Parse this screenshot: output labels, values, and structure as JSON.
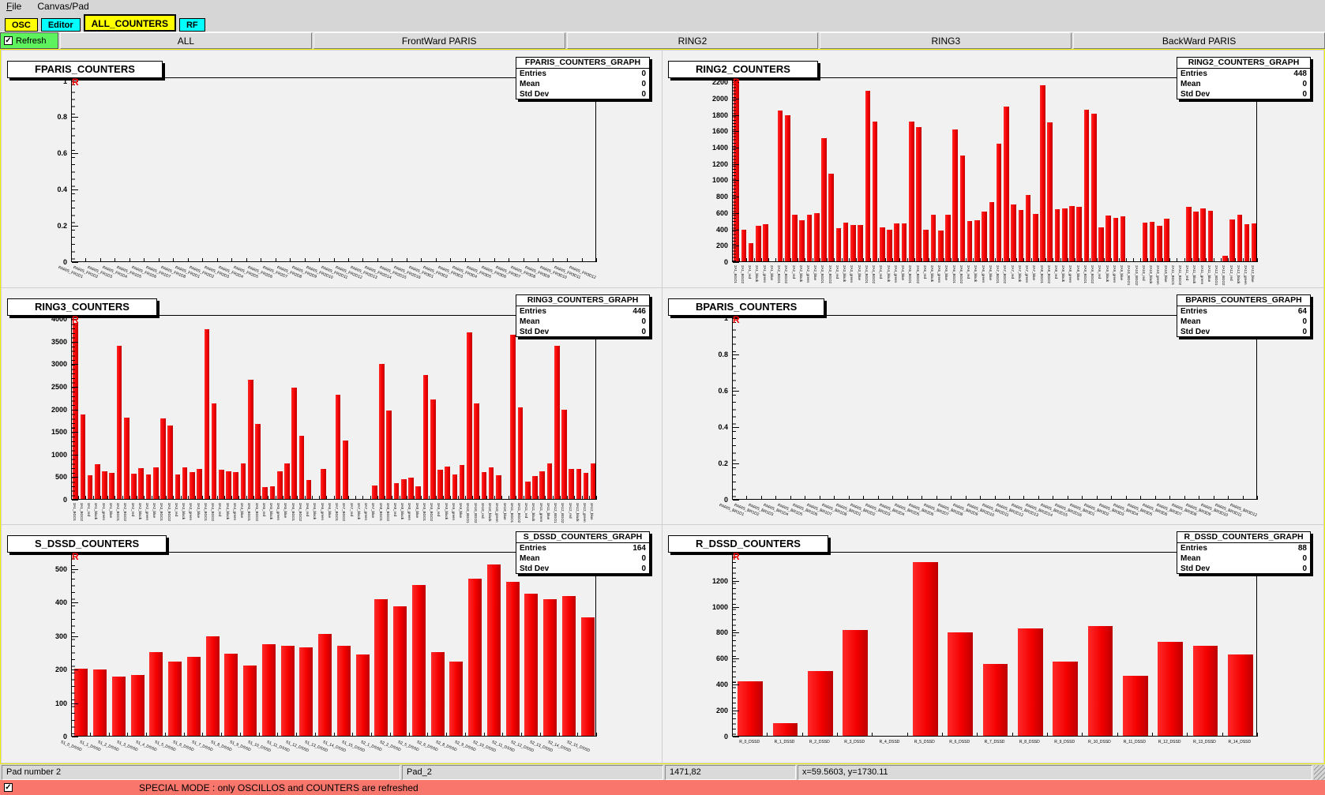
{
  "menu": {
    "items": [
      "File",
      "Canvas/Pad"
    ]
  },
  "tabs": [
    {
      "label": "OSC",
      "color": "#ffff00",
      "selected": false
    },
    {
      "label": "Editor",
      "color": "#00ffff",
      "selected": false
    },
    {
      "label": "ALL_COUNTERS",
      "color": "#ffff00",
      "selected": true
    },
    {
      "label": "RF",
      "color": "#00ffff",
      "selected": false
    }
  ],
  "toolbar": {
    "refresh_label": "Refresh",
    "refresh_checked": true,
    "buttons": [
      "ALL",
      "FrontWard PARIS",
      "RING2",
      "RING3",
      "BackWard PARIS"
    ]
  },
  "status_bar": {
    "segments": [
      "Pad number 2",
      "Pad_2",
      "1471,82",
      "x=59.5603, y=1730.11"
    ]
  },
  "special_bar": {
    "checked": true,
    "text": "SPECIAL MODE : only OSCILLOS and COUNTERS are refreshed",
    "color": "#f8766b"
  },
  "colors": {
    "bar": "#f40000",
    "tab_yellow": "#ffff00",
    "tab_cyan": "#00ffff",
    "refresh_green": "#5ef25e",
    "canvas_border": "#f0f000",
    "highlight_red": "#d04040",
    "pad_bg": "#f1f1f1"
  },
  "chart_data": [
    {
      "id": "fparis",
      "type": "bar",
      "title": "FPARIS_COUNTERS",
      "stats": {
        "title": "FPARIS_COUNTERS_GRAPH",
        "rows": [
          [
            "Entries",
            "0"
          ],
          [
            "Mean",
            "0"
          ],
          [
            "Std Dev",
            "0"
          ]
        ]
      },
      "marker": "R",
      "label_style": "diag",
      "ylim": 1.02,
      "ytick_vals": [
        0,
        0.2,
        0.4,
        0.6,
        0.8,
        1
      ],
      "ytick_labels": [
        "0",
        "0.2",
        "0.4",
        "0.6",
        "0.8",
        "1"
      ],
      "categories": [
        "PARIS_FR1D1",
        "PARIS_FR1D2",
        "PARIS_FR1D3",
        "PARIS_FR1D4",
        "PARIS_FR1D5",
        "PARIS_FR1D6",
        "PARIS_FR1D7",
        "PARIS_FR1D8",
        "PARIS_FR2D1",
        "PARIS_FR2D2",
        "PARIS_FR2D3",
        "PARIS_FR2D4",
        "PARIS_FR2D5",
        "PARIS_FR2D6",
        "PARIS_FR2D7",
        "PARIS_FR2D8",
        "PARIS_FR2D9",
        "PARIS_FR2D10",
        "PARIS_FR2D11",
        "PARIS_FR2D12",
        "PARIS_FR2D13",
        "PARIS_FR2D14",
        "PARIS_FR2D15",
        "PARIS_FR2D16",
        "PARIS_FR3D1",
        "PARIS_FR3D2",
        "PARIS_FR3D3",
        "PARIS_FR3D4",
        "PARIS_FR3D5",
        "PARIS_FR3D6",
        "PARIS_FR3D7",
        "PARIS_FR3D8",
        "PARIS_FR3D9",
        "PARIS_FR3D10",
        "PARIS_FR3D11",
        "PARIS_FR3D12"
      ],
      "values": [
        0,
        0,
        0,
        0,
        0,
        0,
        0,
        0,
        0,
        0,
        0,
        0,
        0,
        0,
        0,
        0,
        0,
        0,
        0,
        0,
        0,
        0,
        0,
        0,
        0,
        0,
        0,
        0,
        0,
        0,
        0,
        0,
        0,
        0,
        0,
        0
      ]
    },
    {
      "id": "ring2",
      "type": "bar",
      "title": "RING2_COUNTERS",
      "stats": {
        "title": "RING2_COUNTERS_GRAPH",
        "rows": [
          [
            "Entries",
            "448"
          ],
          [
            "Mean",
            "0"
          ],
          [
            "Std Dev",
            "0"
          ]
        ]
      },
      "marker": "R",
      "label_style": "vert",
      "ylim": 2260,
      "ytick_vals": [
        0,
        200,
        400,
        600,
        800,
        1000,
        1200,
        1400,
        1600,
        1800,
        2000,
        2200
      ],
      "ytick_labels": [
        "0",
        "200",
        "400",
        "600",
        "800",
        "1000",
        "1200",
        "1400",
        "1600",
        "1800",
        "2000",
        "2200"
      ],
      "categories": [
        "2A1_BGO1",
        "2A1_BGO2",
        "2A1_red",
        "2A1_black",
        "2A1_green",
        "2A1_blue",
        "2A2_BGO1",
        "2A2_BGO2",
        "2A2_red",
        "2A2_black",
        "2A2_green",
        "2A2_blue",
        "2A3_BGO1",
        "2A3_BGO2",
        "2A3_red",
        "2A3_black",
        "2A3_green",
        "2A3_blue",
        "2A4_BGO1",
        "2A4_BGO2",
        "2A4_red",
        "2A4_black",
        "2A4_green",
        "2A4_blue",
        "2A5_BGO1",
        "2A5_BGO2",
        "2A5_red",
        "2A5_black",
        "2A5_green",
        "2A5_blue",
        "2A6_BGO1",
        "2A6_BGO2",
        "2A6_red",
        "2A6_black",
        "2A6_green",
        "2A6_blue",
        "2A7_BGO1",
        "2A7_BGO2",
        "2A7_red",
        "2A7_black",
        "2A7_green",
        "2A7_blue",
        "2A8_BGO1",
        "2A8_BGO2",
        "2A8_red",
        "2A8_black",
        "2A8_green",
        "2A8_blue",
        "2A9_BGO1",
        "2A9_BGO2",
        "2A9_red",
        "2A9_black",
        "2A9_green",
        "2A9_blue",
        "2A10_BGO1",
        "2A10_BGO2",
        "2A10_red",
        "2A10_black",
        "2A10_green",
        "2A10_blue",
        "2A11_BGO1",
        "2A11_BGO2",
        "2A11_red",
        "2A11_black",
        "2A11_green",
        "2A11_blue",
        "2A12_BGO1",
        "2A12_BGO2",
        "2A12_red",
        "2A12_black",
        "2A12_green",
        "2A12_blue"
      ],
      "values": [
        2250,
        390,
        220,
        430,
        455,
        0,
        1845,
        1790,
        570,
        505,
        570,
        590,
        1505,
        1075,
        405,
        475,
        440,
        440,
        2085,
        1710,
        420,
        390,
        465,
        465,
        1710,
        1645,
        390,
        570,
        380,
        570,
        1610,
        1295,
        490,
        505,
        605,
        720,
        1440,
        1890,
        700,
        630,
        810,
        580,
        2155,
        1700,
        635,
        645,
        680,
        665,
        1855,
        1810,
        420,
        560,
        530,
        550,
        0,
        0,
        475,
        480,
        430,
        520,
        0,
        0,
        665,
        605,
        645,
        620,
        0,
        65,
        510,
        570,
        455,
        460
      ]
    },
    {
      "id": "ring3",
      "type": "bar",
      "title": "RING3_COUNTERS",
      "stats": {
        "title": "RING3_COUNTERS_GRAPH",
        "rows": [
          [
            "Entries",
            "446"
          ],
          [
            "Mean",
            "0"
          ],
          [
            "Std Dev",
            "0"
          ]
        ]
      },
      "marker": "R",
      "label_style": "vert",
      "ylim": 4100,
      "ytick_vals": [
        0,
        500,
        1000,
        1500,
        2000,
        2500,
        3000,
        3500,
        4000
      ],
      "ytick_labels": [
        "0",
        "500",
        "1000",
        "1500",
        "2000",
        "2500",
        "3000",
        "3500",
        "4000"
      ],
      "categories": [
        "3A1_BGO1",
        "3A1_BGO2",
        "3A1_red",
        "3A1_black",
        "3A1_green",
        "3A1_blue",
        "3A2_BGO1",
        "3A2_BGO2",
        "3A2_red",
        "3A2_black",
        "3A2_green",
        "3A2_blue",
        "3A3_BGO1",
        "3A3_BGO2",
        "3A3_red",
        "3A3_black",
        "3A3_green",
        "3A3_blue",
        "3A4_BGO1",
        "3A4_BGO2",
        "3A4_red",
        "3A4_black",
        "3A4_green",
        "3A4_blue",
        "3A5_BGO1",
        "3A5_BGO2",
        "3A5_red",
        "3A5_black",
        "3A5_green",
        "3A5_blue",
        "3A6_BGO1",
        "3A6_BGO2",
        "3A6_red",
        "3A6_black",
        "3A6_green",
        "3A6_blue",
        "3A7_BGO1",
        "3A7_BGO2",
        "3A7_red",
        "3A7_black",
        "3A7_green",
        "3A7_blue",
        "3A8_BGO1",
        "3A8_BGO2",
        "3A8_red",
        "3A8_black",
        "3A8_green",
        "3A8_blue",
        "3A9_BGO1",
        "3A9_BGO2",
        "3A9_red",
        "3A9_black",
        "3A9_green",
        "3A9_blue",
        "3A10_BGO1",
        "3A10_BGO2",
        "3A10_red",
        "3A10_black",
        "3A10_green",
        "3A10_blue",
        "3A11_BGO1",
        "3A11_BGO2",
        "3A11_red",
        "3A11_black",
        "3A11_green",
        "3A11_blue",
        "3A12_BGO1",
        "3A12_BGO2",
        "3A12_red",
        "3A12_black",
        "3A12_green",
        "3A12_blue"
      ],
      "values": [
        3900,
        1870,
        520,
        770,
        615,
        565,
        3400,
        1800,
        555,
        680,
        545,
        700,
        1790,
        1620,
        535,
        700,
        585,
        665,
        3760,
        2110,
        650,
        600,
        585,
        790,
        2640,
        1655,
        260,
        270,
        615,
        790,
        2460,
        1400,
        415,
        0,
        660,
        0,
        2300,
        1285,
        0,
        0,
        0,
        290,
        2990,
        1955,
        345,
        440,
        465,
        280,
        2740,
        2210,
        635,
        715,
        545,
        750,
        3690,
        2110,
        585,
        700,
        520,
        0,
        3630,
        2020,
        385,
        500,
        600,
        790,
        3390,
        1970,
        665,
        665,
        570,
        775
      ]
    },
    {
      "id": "bparis",
      "type": "bar",
      "title": "BPARIS_COUNTERS",
      "stats": {
        "title": "BPARIS_COUNTERS_GRAPH",
        "rows": [
          [
            "Entries",
            "64"
          ],
          [
            "Mean",
            "0"
          ],
          [
            "Std Dev",
            "0"
          ]
        ]
      },
      "marker": "R",
      "label_style": "diag",
      "ylim": 1.02,
      "ytick_vals": [
        0,
        0.2,
        0.4,
        0.6,
        0.8,
        1
      ],
      "ytick_labels": [
        "0",
        "0.2",
        "0.4",
        "0.6",
        "0.8",
        "1"
      ],
      "categories": [
        "PARIS_BR1D1",
        "PARIS_BR1D2",
        "PARIS_BR1D3",
        "PARIS_BR1D4",
        "PARIS_BR1D5",
        "PARIS_BR1D6",
        "PARIS_BR1D7",
        "PARIS_BR1D8",
        "PARIS_BR2D1",
        "PARIS_BR2D2",
        "PARIS_BR2D3",
        "PARIS_BR2D4",
        "PARIS_BR2D5",
        "PARIS_BR2D6",
        "PARIS_BR2D7",
        "PARIS_BR2D8",
        "PARIS_BR2D9",
        "PARIS_BR2D10",
        "PARIS_BR2D11",
        "PARIS_BR2D12",
        "PARIS_BR2D13",
        "PARIS_BR2D14",
        "PARIS_BR2D15",
        "PARIS_BR2D16",
        "PARIS_BR3D1",
        "PARIS_BR3D2",
        "PARIS_BR3D3",
        "PARIS_BR3D4",
        "PARIS_BR3D5",
        "PARIS_BR3D6",
        "PARIS_BR3D7",
        "PARIS_BR3D8",
        "PARIS_BR3D9",
        "PARIS_BR3D10",
        "PARIS_BR3D11",
        "PARIS_BR3D12"
      ],
      "values": [
        0,
        0,
        0,
        0,
        0,
        0,
        0,
        0,
        0,
        0,
        0,
        0,
        0,
        0,
        0,
        0,
        0,
        0,
        0,
        0,
        0,
        0,
        0,
        0,
        0,
        0,
        0,
        0,
        0,
        0,
        0,
        0,
        0,
        0,
        0,
        0
      ]
    },
    {
      "id": "s_dssd",
      "type": "bar",
      "title": "S_DSSD_COUNTERS",
      "stats": {
        "title": "S_DSSD_COUNTERS_GRAPH",
        "rows": [
          [
            "Entries",
            "164"
          ],
          [
            "Mean",
            "0"
          ],
          [
            "Std Dev",
            "0"
          ]
        ]
      },
      "marker": "R",
      "label_style": "diag",
      "ylim": 550,
      "ytick_vals": [
        0,
        100,
        200,
        300,
        400,
        500
      ],
      "ytick_labels": [
        "0",
        "100",
        "200",
        "300",
        "400",
        "500"
      ],
      "categories": [
        "S1_0_DSSD",
        "S1_1_DSSD",
        "S1_2_DSSD",
        "S1_3_DSSD",
        "S1_4_DSSD",
        "S1_5_DSSD",
        "S1_6_DSSD",
        "S1_7_DSSD",
        "S1_8_DSSD",
        "S1_9_DSSD",
        "S1_10_DSSD",
        "S1_11_DSSD",
        "S1_12_DSSD",
        "S1_13_DSSD",
        "S1_14_DSSD",
        "S1_15_DSSD",
        "S2_1_DSSD",
        "S2_2_DSSD",
        "S2_5_DSSD",
        "S2_6_DSSD",
        "S2_8_DSSD",
        "S2_9_DSSD",
        "S2_10_DSSD",
        "S2_11_DSSD",
        "S2_12_DSSD",
        "S2_13_DSSD",
        "S2_14_DSSD",
        "S2_15_DSSD"
      ],
      "values": [
        200,
        198,
        176,
        182,
        249,
        221,
        237,
        296,
        245,
        209,
        274,
        269,
        265,
        305,
        268,
        243,
        407,
        387,
        450,
        249,
        221,
        468,
        510,
        459,
        424,
        407,
        417,
        353
      ]
    },
    {
      "id": "r_dssd",
      "type": "bar",
      "title": "R_DSSD_COUNTERS",
      "stats": {
        "title": "R_DSSD_COUNTERS_GRAPH",
        "rows": [
          [
            "Entries",
            "88"
          ],
          [
            "Mean",
            "0"
          ],
          [
            "Std Dev",
            "0"
          ]
        ]
      },
      "marker": "R",
      "label_style": "horiz",
      "ylim": 1420,
      "ytick_vals": [
        0,
        200,
        400,
        600,
        800,
        1000,
        1200
      ],
      "ytick_labels": [
        "0",
        "200",
        "400",
        "600",
        "800",
        "1000",
        "1200"
      ],
      "categories": [
        "R_0_DSSD",
        "R_1_DSSD",
        "R_2_DSSD",
        "R_3_DSSD",
        "R_4_DSSD",
        "R_5_DSSD",
        "R_6_DSSD",
        "R_7_DSSD",
        "R_8_DSSD",
        "R_9_DSSD",
        "R_10_DSSD",
        "R_11_DSSD",
        "R_12_DSSD",
        "R_13_DSSD",
        "R_14_DSSD"
      ],
      "values": [
        420,
        100,
        500,
        815,
        0,
        1340,
        795,
        555,
        825,
        575,
        845,
        465,
        725,
        695,
        625
      ]
    }
  ]
}
